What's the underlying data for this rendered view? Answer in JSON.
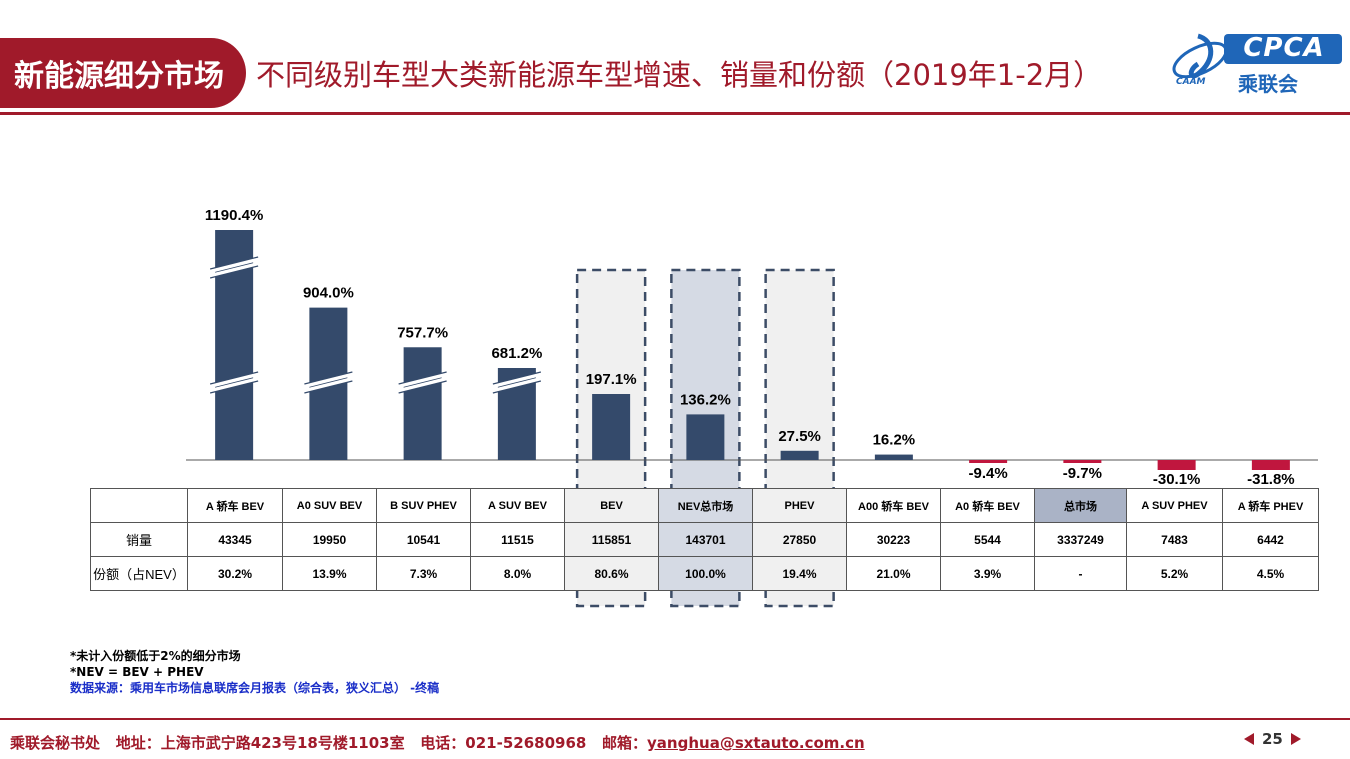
{
  "header": {
    "tag": "新能源细分市场",
    "title": "不同级别车型大类新能源车型增速、销量和份额（2019年1-2月）",
    "logo_main": "CPCA",
    "logo_cn": "乘联会",
    "logo_sub": "CAAM"
  },
  "colors": {
    "brand": "#a01a2a",
    "bar_positive": "#344a6b",
    "bar_negative": "#c0163e",
    "nev_highlight": "#d5dae4",
    "total_highlight": "#aab3c6"
  },
  "chart_data": {
    "type": "bar",
    "categories": [
      "A 轿车 BEV",
      "A0 SUV BEV",
      "B SUV PHEV",
      "A SUV BEV",
      "BEV",
      "NEV总市场",
      "PHEV",
      "A00 轿车 BEV",
      "A0 轿车 BEV",
      "总市场",
      "A SUV PHEV",
      "A 轿车 PHEV"
    ],
    "series": [
      {
        "values": [
          1190.4,
          904.0,
          757.7,
          681.2,
          197.1,
          136.2,
          27.5,
          16.2,
          -9.4,
          -9.7,
          -30.1,
          -31.8
        ],
        "labels": [
          "1190.4%",
          "904.0%",
          "757.7%",
          "681.2%",
          "197.1%",
          "136.2%",
          "27.5%",
          "16.2%",
          "-9.4%",
          "-9.7%",
          "-30.1%",
          "-31.8%"
        ]
      }
    ],
    "broken_axis_categories": [
      "A 轿车 BEV",
      "A0 SUV BEV",
      "B SUV PHEV",
      "A SUV BEV"
    ],
    "highlighted_categories": [
      "BEV",
      "NEV总市场",
      "PHEV"
    ],
    "legend": "none",
    "grid": false
  },
  "table": {
    "sales_label": "销量",
    "share_label": "份额（占NEV）",
    "sales": [
      "43345",
      "19950",
      "10541",
      "11515",
      "115851",
      "143701",
      "27850",
      "30223",
      "5544",
      "3337249",
      "7483",
      "6442"
    ],
    "share": [
      "30.2%",
      "13.9%",
      "7.3%",
      "8.0%",
      "80.6%",
      "100.0%",
      "19.4%",
      "21.0%",
      "3.9%",
      "-",
      "5.2%",
      "4.5%"
    ]
  },
  "notes": {
    "note1": "*未计入份额低于2%的细分市场",
    "note2": "*NEV = BEV + PHEV",
    "source": "数据来源：乘用车市场信息联席会月报表（综合表，狭义汇总） -终稿"
  },
  "footer": {
    "org": "乘联会秘书处",
    "address": "地址：上海市武宁路423号18号楼1103室",
    "phone": "电话：021-52680968",
    "email_label": "邮箱：",
    "email": "yanghua@sxtauto.com.cn",
    "page": "25"
  }
}
